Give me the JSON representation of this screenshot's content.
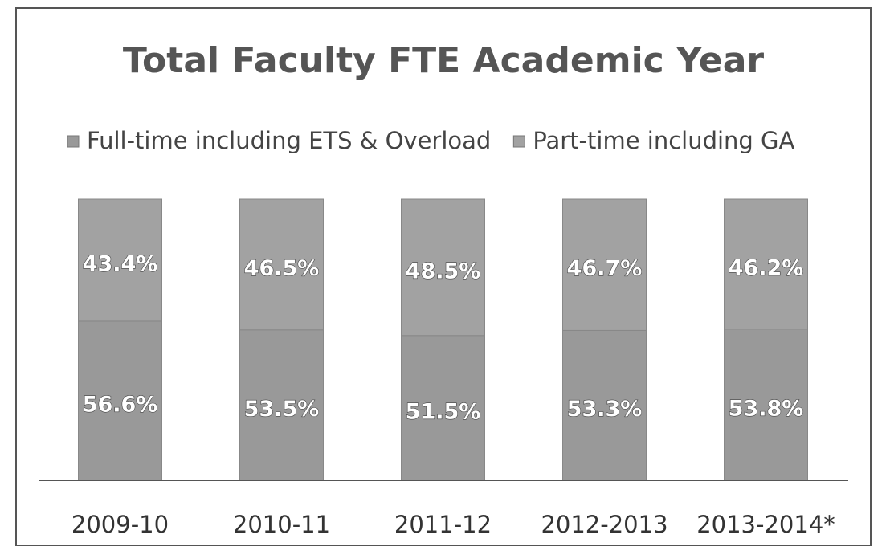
{
  "chart_data": {
    "type": "stacked_bar",
    "title": "Total Faculty FTE Academic Year",
    "categories": [
      "2009-10",
      "2010-11",
      "2011-12",
      "2012-2013",
      "2013-2014*"
    ],
    "series": [
      {
        "name": "Full-time including ETS & Overload",
        "color": "#999999",
        "values": [
          56.6,
          53.5,
          51.5,
          53.3,
          53.8
        ],
        "value_labels": [
          "56.6%",
          "53.5%",
          "51.5%",
          "53.3%",
          "53.8%"
        ]
      },
      {
        "name": "Part-time including GA",
        "color": "#a2a2a2",
        "values": [
          43.4,
          46.5,
          48.5,
          46.7,
          46.2
        ],
        "value_labels": [
          "43.4%",
          "46.5%",
          "48.5%",
          "46.7%",
          "46.2%"
        ]
      }
    ],
    "ylim": [
      0,
      100
    ],
    "legend": "top"
  }
}
